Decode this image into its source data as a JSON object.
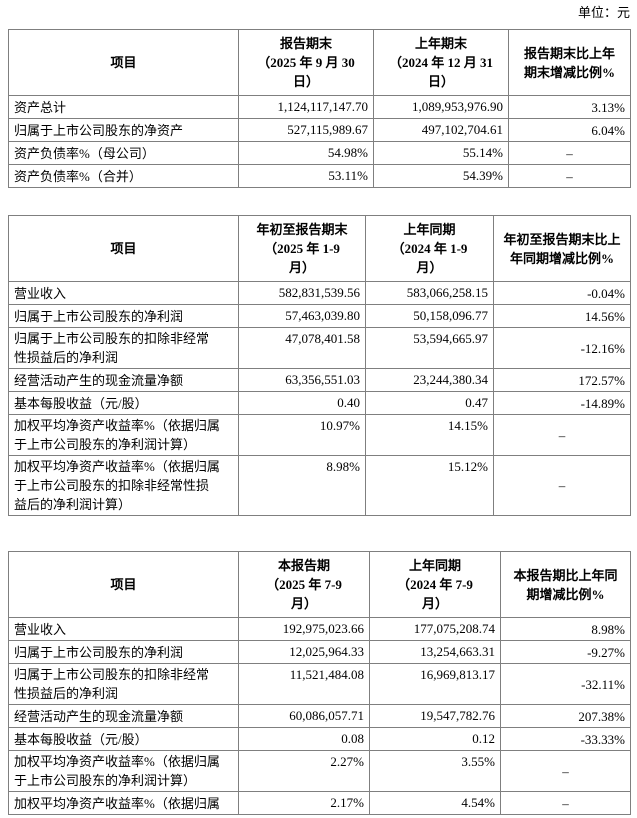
{
  "unit_label": "单位：元",
  "table1": {
    "headers": {
      "item": "项目",
      "current": "报告期末\n（2025 年 9 月 30\n日）",
      "prior": "上年期末\n（2024 年 12 月 31\n日）",
      "change": "报告期末比上年\n期末增减比例%"
    },
    "rows": [
      {
        "name": "资产总计",
        "v1": "1,124,117,147.70",
        "v2": "1,089,953,976.90",
        "chg": "3.13%"
      },
      {
        "name": "归属于上市公司股东的净资产",
        "v1": "527,115,989.67",
        "v2": "497,102,704.61",
        "chg": "6.04%"
      },
      {
        "name": "资产负债率%（母公司）",
        "v1": "54.98%",
        "v2": "55.14%",
        "chg": "–"
      },
      {
        "name": "资产负债率%（合并）",
        "v1": "53.11%",
        "v2": "54.39%",
        "chg": "–"
      }
    ]
  },
  "table2": {
    "headers": {
      "item": "项目",
      "current": "年初至报告期末\n（2025 年 1-9\n月）",
      "prior": "上年同期\n（2024 年 1-9\n月）",
      "change": "年初至报告期末比上\n年同期增减比例%"
    },
    "rows": [
      {
        "name": "营业收入",
        "v1": "582,831,539.56",
        "v2": "583,066,258.15",
        "chg": "-0.04%"
      },
      {
        "name": "归属于上市公司股东的净利润",
        "v1": "57,463,039.80",
        "v2": "50,158,096.77",
        "chg": "14.56%"
      },
      {
        "name": "归属于上市公司股东的扣除非经常\n性损益后的净利润",
        "v1": "47,078,401.58",
        "v2": "53,594,665.97",
        "chg": "-12.16%"
      },
      {
        "name": "经营活动产生的现金流量净额",
        "v1": "63,356,551.03",
        "v2": "23,244,380.34",
        "chg": "172.57%"
      },
      {
        "name": "基本每股收益（元/股）",
        "v1": "0.40",
        "v2": "0.47",
        "chg": "-14.89%"
      },
      {
        "name": "加权平均净资产收益率%（依据归属\n于上市公司股东的净利润计算）",
        "v1": "10.97%",
        "v2": "14.15%",
        "chg": "–"
      },
      {
        "name": "加权平均净资产收益率%（依据归属\n于上市公司股东的扣除非经常性损\n益后的净利润计算）",
        "v1": "8.98%",
        "v2": "15.12%",
        "chg": "–"
      }
    ]
  },
  "table3": {
    "headers": {
      "item": "项目",
      "current": "本报告期\n（2025 年 7-9\n月）",
      "prior": "上年同期\n（2024 年 7-9\n月）",
      "change": "本报告期比上年同\n期增减比例%"
    },
    "rows": [
      {
        "name": "营业收入",
        "v1": "192,975,023.66",
        "v2": "177,075,208.74",
        "chg": "8.98%"
      },
      {
        "name": "归属于上市公司股东的净利润",
        "v1": "12,025,964.33",
        "v2": "13,254,663.31",
        "chg": "-9.27%"
      },
      {
        "name": "归属于上市公司股东的扣除非经常\n性损益后的净利润",
        "v1": "11,521,484.08",
        "v2": "16,969,813.17",
        "chg": "-32.11%"
      },
      {
        "name": "经营活动产生的现金流量净额",
        "v1": "60,086,057.71",
        "v2": "19,547,782.76",
        "chg": "207.38%"
      },
      {
        "name": "基本每股收益（元/股）",
        "v1": "0.08",
        "v2": "0.12",
        "chg": "-33.33%"
      },
      {
        "name": "加权平均净资产收益率%（依据归属\n于上市公司股东的净利润计算）",
        "v1": "2.27%",
        "v2": "3.55%",
        "chg": "–"
      },
      {
        "name": "加权平均净资产收益率%（依据归属",
        "v1": "2.17%",
        "v2": "4.54%",
        "chg": "–"
      }
    ]
  }
}
